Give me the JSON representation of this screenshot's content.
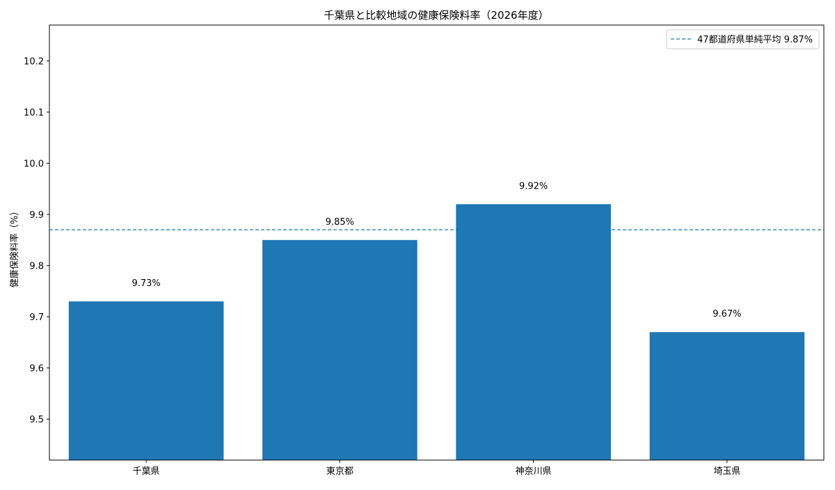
{
  "chart_data": {
    "type": "bar",
    "title": "千葉県と比較地域の健康保険料率（2026年度）",
    "xlabel": "",
    "ylabel": "健康保険料率（%）",
    "categories": [
      "千葉県",
      "東京都",
      "神奈川県",
      "埼玉県"
    ],
    "values": [
      9.73,
      9.85,
      9.92,
      9.67
    ],
    "value_labels": [
      "9.73%",
      "9.85%",
      "9.92%",
      "9.67%"
    ],
    "ylim": [
      9.42,
      10.27
    ],
    "yticks": [
      9.5,
      9.6,
      9.7,
      9.8,
      9.9,
      10.0,
      10.1,
      10.2
    ],
    "ytick_labels": [
      "9.5",
      "9.6",
      "9.7",
      "9.8",
      "9.9",
      "10.0",
      "10.1",
      "10.2"
    ],
    "reference_line": {
      "value": 9.87,
      "label": "47都道府県単純平均 9.87%",
      "style": "dashed"
    },
    "legend_placement": "top-right",
    "grid": false,
    "colors": {
      "bar": "#1f77b4",
      "reference_line": "#1f77b4"
    }
  }
}
